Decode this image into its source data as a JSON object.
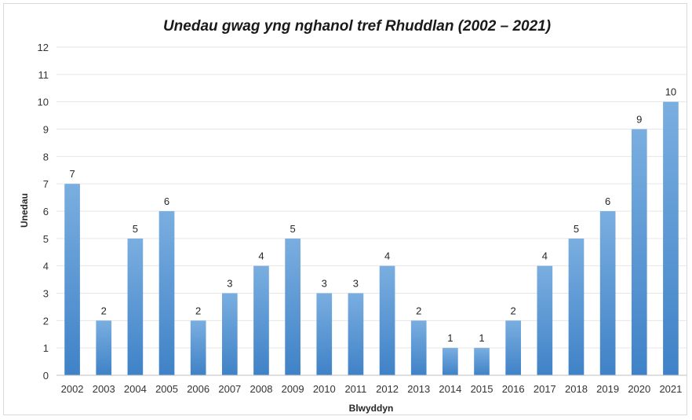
{
  "chart_data": {
    "type": "bar",
    "title": "Unedau gwag yng nghanol tref Rhuddlan (2002 – 2021)",
    "xlabel": "Blwyddyn",
    "ylabel": "Unedau",
    "ylim": [
      0,
      12
    ],
    "yticks": [
      "0",
      "1",
      "2",
      "3",
      "4",
      "5",
      "6",
      "7",
      "8",
      "9",
      "10",
      "11",
      "12"
    ],
    "grid": true,
    "legend": "none",
    "bar_color": "#5b9bd5",
    "categories": [
      "2002",
      "2003",
      "2004",
      "2005",
      "2006",
      "2007",
      "2008",
      "2009",
      "2010",
      "2011",
      "2012",
      "2013",
      "2014",
      "2015",
      "2016",
      "2017",
      "2018",
      "2019",
      "2020",
      "2021"
    ],
    "values": [
      7,
      2,
      5,
      6,
      2,
      3,
      4,
      5,
      3,
      3,
      4,
      2,
      1,
      1,
      2,
      4,
      5,
      6,
      9,
      10
    ],
    "data_labels": [
      "7",
      "2",
      "5",
      "6",
      "2",
      "3",
      "4",
      "5",
      "3",
      "3",
      "4",
      "2",
      "1",
      "1",
      "2",
      "4",
      "5",
      "6",
      "9",
      "10"
    ]
  }
}
